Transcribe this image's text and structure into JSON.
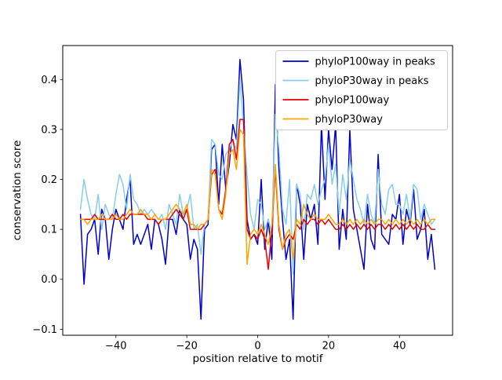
{
  "chart_data": {
    "type": "line",
    "title": "",
    "xlabel": "position relative to motif",
    "ylabel": "conservation score",
    "xlim": [
      -55,
      55
    ],
    "ylim": [
      -0.112,
      0.468
    ],
    "grid": false,
    "legend": {
      "position": "upper right",
      "border_color": "#cccccc",
      "background": "#ffffff"
    },
    "xticks": {
      "values": [
        -40,
        -20,
        0,
        20,
        40
      ],
      "labels": [
        "−40",
        "−20",
        "0",
        "20",
        "40"
      ]
    },
    "yticks": {
      "values": [
        -0.1,
        0.0,
        0.1,
        0.2,
        0.3,
        0.4
      ],
      "labels": [
        "−0.1",
        "0.0",
        "0.1",
        "0.2",
        "0.3",
        "0.4"
      ]
    },
    "x": [
      -50,
      -49,
      -48,
      -47,
      -46,
      -45,
      -44,
      -43,
      -42,
      -41,
      -40,
      -39,
      -38,
      -37,
      -36,
      -35,
      -34,
      -33,
      -32,
      -31,
      -30,
      -29,
      -28,
      -27,
      -26,
      -25,
      -24,
      -23,
      -22,
      -21,
      -20,
      -19,
      -18,
      -17,
      -16,
      -15,
      -14,
      -13,
      -12,
      -11,
      -10,
      -9,
      -8,
      -7,
      -6,
      -5,
      -4,
      -3,
      -2,
      -1,
      0,
      1,
      2,
      3,
      4,
      5,
      6,
      7,
      8,
      9,
      10,
      11,
      12,
      13,
      14,
      15,
      16,
      17,
      18,
      19,
      20,
      21,
      22,
      23,
      24,
      25,
      26,
      27,
      28,
      29,
      30,
      31,
      32,
      33,
      34,
      35,
      36,
      37,
      38,
      39,
      40,
      41,
      42,
      43,
      44,
      45,
      46,
      47,
      48,
      49,
      50
    ],
    "series": [
      {
        "name": "phyloP100way in peaks",
        "color": "#0000cd",
        "values": [
          0.13,
          -0.01,
          0.09,
          0.1,
          0.12,
          0.05,
          0.14,
          0.12,
          0.04,
          0.1,
          0.14,
          0.12,
          0.1,
          0.16,
          0.2,
          0.07,
          0.09,
          0.07,
          0.09,
          0.11,
          0.06,
          0.12,
          0.11,
          0.08,
          0.03,
          0.12,
          0.12,
          0.09,
          0.14,
          0.12,
          0.11,
          0.04,
          0.08,
          0.06,
          -0.08,
          0.1,
          0.11,
          0.26,
          0.27,
          0.15,
          0.27,
          0.18,
          0.23,
          0.31,
          0.28,
          0.44,
          0.36,
          0.12,
          0.08,
          0.09,
          0.07,
          0.2,
          0.06,
          0.12,
          0.04,
          0.39,
          0.22,
          0.12,
          0.04,
          0.08,
          -0.08,
          0.19,
          0.15,
          0.04,
          0.15,
          0.12,
          0.15,
          0.07,
          0.31,
          0.16,
          0.3,
          0.22,
          0.31,
          0.06,
          0.14,
          0.08,
          0.3,
          0.14,
          0.1,
          0.06,
          0.02,
          0.15,
          0.08,
          0.06,
          0.25,
          0.09,
          0.08,
          0.07,
          0.13,
          0.12,
          0.17,
          0.07,
          0.14,
          0.11,
          0.18,
          0.08,
          0.1,
          0.14,
          0.04,
          0.09,
          0.02
        ]
      },
      {
        "name": "phyloP30way in peaks",
        "color": "#87ceeb",
        "values": [
          0.14,
          0.2,
          0.16,
          0.13,
          0.12,
          0.17,
          0.1,
          0.15,
          0.13,
          0.12,
          0.17,
          0.21,
          0.19,
          0.14,
          0.21,
          0.16,
          0.15,
          0.13,
          0.14,
          0.13,
          0.14,
          0.13,
          0.12,
          0.13,
          0.1,
          0.15,
          0.13,
          0.11,
          0.17,
          0.13,
          0.14,
          0.17,
          0.1,
          0.11,
          0.05,
          0.11,
          0.12,
          0.28,
          0.27,
          0.21,
          0.2,
          0.25,
          0.26,
          0.28,
          0.26,
          0.4,
          0.31,
          0.21,
          0.13,
          0.1,
          0.16,
          0.15,
          0.1,
          0.12,
          0.09,
          0.33,
          0.26,
          0.14,
          0.11,
          0.2,
          0.01,
          0.19,
          0.17,
          0.1,
          0.17,
          0.16,
          0.19,
          0.15,
          0.18,
          0.2,
          0.27,
          0.19,
          0.23,
          0.13,
          0.21,
          0.16,
          0.24,
          0.2,
          0.16,
          0.14,
          0.11,
          0.17,
          0.13,
          0.11,
          0.22,
          0.15,
          0.13,
          0.18,
          0.19,
          0.15,
          0.15,
          0.13,
          0.17,
          0.12,
          0.19,
          0.18,
          0.12,
          0.15,
          0.13,
          0.11,
          0.12
        ]
      },
      {
        "name": "phyloP100way",
        "color": "#e80000",
        "values": [
          0.12,
          0.12,
          0.12,
          0.12,
          0.13,
          0.12,
          0.12,
          0.12,
          0.12,
          0.13,
          0.12,
          0.12,
          0.13,
          0.12,
          0.13,
          0.13,
          0.13,
          0.13,
          0.13,
          0.12,
          0.12,
          0.12,
          0.11,
          0.12,
          0.12,
          0.12,
          0.13,
          0.14,
          0.13,
          0.12,
          0.14,
          0.1,
          0.1,
          0.1,
          0.1,
          0.11,
          0.12,
          0.21,
          0.22,
          0.14,
          0.13,
          0.18,
          0.27,
          0.28,
          0.24,
          0.32,
          0.32,
          0.1,
          0.08,
          0.09,
          0.08,
          0.1,
          0.08,
          0.02,
          0.1,
          0.22,
          0.1,
          0.06,
          0.08,
          0.09,
          0.08,
          0.11,
          0.1,
          0.12,
          0.11,
          0.12,
          0.12,
          0.11,
          0.12,
          0.11,
          0.12,
          0.11,
          0.1,
          0.1,
          0.11,
          0.1,
          0.11,
          0.1,
          0.11,
          0.1,
          0.11,
          0.1,
          0.11,
          0.1,
          0.11,
          0.11,
          0.1,
          0.11,
          0.1,
          0.11,
          0.1,
          0.11,
          0.1,
          0.11,
          0.1,
          0.11,
          0.1,
          0.1,
          0.11,
          0.1,
          0.1
        ]
      },
      {
        "name": "phyloP30way",
        "color": "#ffa500",
        "values": [
          0.12,
          0.12,
          0.11,
          0.12,
          0.12,
          0.12,
          0.13,
          0.12,
          0.12,
          0.12,
          0.13,
          0.12,
          0.12,
          0.13,
          0.14,
          0.13,
          0.13,
          0.14,
          0.13,
          0.13,
          0.12,
          0.13,
          0.12,
          0.12,
          0.12,
          0.13,
          0.14,
          0.15,
          0.14,
          0.13,
          0.15,
          0.11,
          0.11,
          0.1,
          0.11,
          0.11,
          0.12,
          0.22,
          0.21,
          0.14,
          0.12,
          0.17,
          0.25,
          0.26,
          0.22,
          0.3,
          0.29,
          0.03,
          0.09,
          0.1,
          0.09,
          0.11,
          0.09,
          0.07,
          0.11,
          0.23,
          0.11,
          0.06,
          0.09,
          0.1,
          0.04,
          0.12,
          0.11,
          0.15,
          0.13,
          0.12,
          0.13,
          0.12,
          0.12,
          0.12,
          0.13,
          0.12,
          0.11,
          0.11,
          0.12,
          0.11,
          0.12,
          0.11,
          0.12,
          0.11,
          0.12,
          0.11,
          0.12,
          0.11,
          0.12,
          0.12,
          0.11,
          0.12,
          0.11,
          0.12,
          0.11,
          0.12,
          0.11,
          0.12,
          0.11,
          0.12,
          0.11,
          0.12,
          0.11,
          0.12,
          0.12
        ]
      }
    ]
  }
}
